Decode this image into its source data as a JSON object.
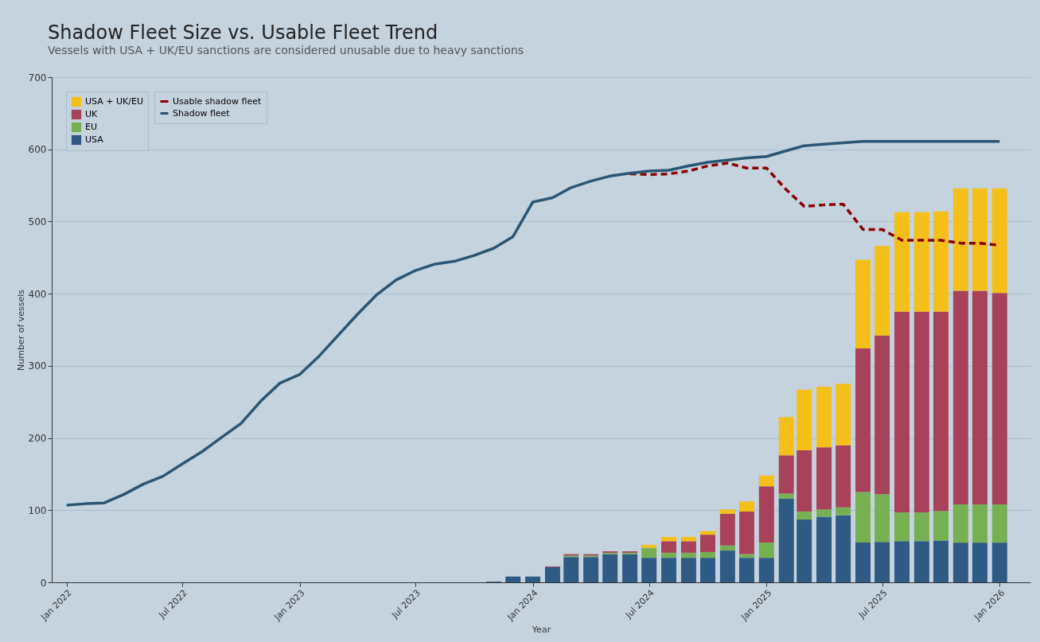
{
  "chart_data": {
    "type": "bar",
    "title": "Shadow Fleet Size vs. Usable Fleet Trend",
    "subtitle": "Vessels with USA + UK/EU sanctions are considered unusable due to heavy sanctions",
    "xlabel": "Year",
    "ylabel": "Number of vessels",
    "stacked": true,
    "x": [
      "2023-11",
      "2023-12",
      "2024-01",
      "2024-02",
      "2024-03",
      "2024-04",
      "2024-05",
      "2024-06",
      "2024-07",
      "2024-08",
      "2024-09",
      "2024-10",
      "2024-11",
      "2024-12",
      "2025-01",
      "2025-02",
      "2025-03",
      "2025-04",
      "2025-05",
      "2025-06",
      "2025-07",
      "2025-08",
      "2025-09",
      "2025-10",
      "2025-11",
      "2025-12",
      "2026-01"
    ],
    "series": [
      {
        "name": "USA",
        "color": "#2e5a84",
        "values": [
          1,
          8,
          8,
          21,
          35,
          35,
          39,
          39,
          34,
          34,
          34,
          34,
          44,
          34,
          34,
          116,
          87,
          91,
          93,
          55,
          56,
          57,
          57,
          58,
          55,
          55,
          55
        ]
      },
      {
        "name": "EU",
        "color": "#76b052",
        "values": [
          0,
          0,
          0,
          0,
          2,
          2,
          2,
          2,
          14,
          7,
          7,
          8,
          7,
          5,
          21,
          7,
          11,
          10,
          11,
          70,
          66,
          40,
          40,
          41,
          53,
          53,
          53
        ]
      },
      {
        "name": "UK",
        "color": "#a8425a",
        "values": [
          0,
          0,
          0,
          1,
          2,
          2,
          2,
          2,
          null,
          16,
          16,
          24,
          44,
          59,
          78,
          53,
          85,
          86,
          86,
          199,
          220,
          278,
          278,
          276,
          296,
          296,
          293
        ]
      },
      {
        "name": "USA + UK/EU",
        "color": "#f4bf19",
        "values": [
          0,
          0,
          0,
          0,
          0,
          0,
          0,
          0,
          4,
          6,
          6,
          5,
          6,
          14,
          15,
          53,
          84,
          84,
          85,
          123,
          124,
          138,
          138,
          139,
          142,
          142,
          145
        ]
      },
      {
        "name": "Usable shadow fleet",
        "type": "line",
        "line_style": "dashed",
        "color": "#8b0000",
        "x": [
          "2024-06",
          "2024-07",
          "2024-08",
          "2024-09",
          "2024-10",
          "2024-11",
          "2024-12",
          "2025-01",
          "2025-02",
          "2025-03",
          "2025-04",
          "2025-05",
          "2025-06",
          "2025-07",
          "2025-08",
          "2025-09",
          "2025-10",
          "2025-11",
          "2025-12",
          "2026-01"
        ],
        "values": [
          566,
          565,
          566,
          570,
          577,
          581,
          574,
          574,
          544,
          521,
          523,
          524,
          489,
          489,
          474,
          474,
          474,
          470,
          470,
          467
        ]
      },
      {
        "name": "Shadow fleet",
        "type": "line",
        "line_style": "solid",
        "color": "#2a5674",
        "x": [
          "2022-01",
          "2022-02",
          "2022-03",
          "2022-04",
          "2022-05",
          "2022-06",
          "2022-07",
          "2022-08",
          "2022-09",
          "2022-10",
          "2022-11",
          "2022-12",
          "2023-01",
          "2023-02",
          "2023-03",
          "2023-04",
          "2023-05",
          "2023-06",
          "2023-07",
          "2023-08",
          "2023-09",
          "2023-10",
          "2023-11",
          "2023-12",
          "2024-01",
          "2024-02",
          "2024-03",
          "2024-04",
          "2024-05",
          "2024-06",
          "2024-07",
          "2024-08",
          "2024-09",
          "2024-10",
          "2024-11",
          "2024-12",
          "2025-01",
          "2025-02",
          "2025-03",
          "2025-04",
          "2025-05",
          "2025-06",
          "2025-07",
          "2025-08",
          "2025-09",
          "2025-10",
          "2025-11",
          "2025-12",
          "2026-01"
        ],
        "values": [
          107,
          109,
          110,
          122,
          136,
          147,
          164,
          181,
          201,
          220,
          251,
          276,
          288,
          314,
          341,
          371,
          398,
          419,
          432,
          441,
          445,
          453,
          463,
          479,
          527,
          533,
          547,
          556,
          563,
          567,
          570,
          571,
          577,
          582,
          585,
          588,
          590,
          598,
          605,
          607,
          609,
          611,
          611,
          611,
          611,
          611,
          611,
          611,
          611
        ]
      }
    ],
    "xlim": [
      "2021-12-15",
      "2026-02-12"
    ],
    "xticks": [
      {
        "value": "2022-01",
        "label": "Jan 2022"
      },
      {
        "value": "2022-07",
        "label": "Jul 2022"
      },
      {
        "value": "2023-01",
        "label": "Jan 2023"
      },
      {
        "value": "2023-07",
        "label": "Jul 2023"
      },
      {
        "value": "2024-01",
        "label": "Jan 2024"
      },
      {
        "value": "2024-07",
        "label": "Jul 2024"
      },
      {
        "value": "2025-01",
        "label": "Jan 2025"
      },
      {
        "value": "2025-07",
        "label": "Jul 2025"
      },
      {
        "value": "2026-01",
        "label": "Jan 2026"
      }
    ],
    "ylim": [
      0,
      700
    ],
    "yticks": [
      0,
      100,
      200,
      300,
      400,
      500,
      600,
      700
    ],
    "grid": "y",
    "legend": "top left"
  }
}
